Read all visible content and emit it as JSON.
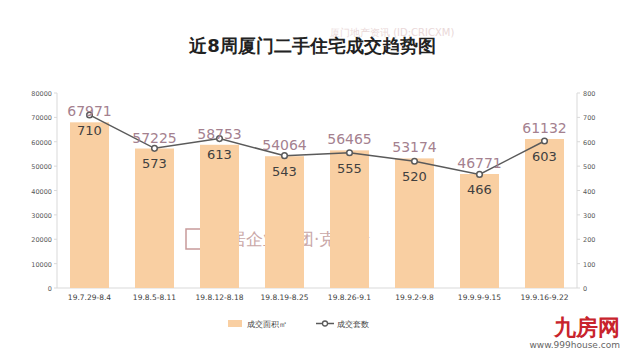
{
  "chart_data": {
    "type": "bar",
    "title": "近8周厦门二手住宅成交趋势图",
    "categories": [
      "19.7.29-8.4",
      "19.8.5-8.11",
      "19.8.12-8.18",
      "19.8.19-8.25",
      "19.8.26-9.1",
      "19.9.2-9.8",
      "19.9.9-9.15",
      "19.9.16-9.22"
    ],
    "series": [
      {
        "name": "成交面积㎡",
        "type": "bar",
        "color": "#f9cfa2",
        "values": [
          67971,
          57225,
          58753,
          54064,
          56465,
          53174,
          46771,
          61132
        ]
      },
      {
        "name": "成交套数",
        "type": "line",
        "axis": "y2",
        "color": "#5a5a5a",
        "marker": "circle",
        "line_style": "solid",
        "values": [
          710,
          573,
          613,
          543,
          555,
          520,
          466,
          603
        ]
      }
    ],
    "ylim": [
      0,
      80000
    ],
    "yticks": [
      0,
      10000,
      20000,
      30000,
      40000,
      50000,
      60000,
      70000,
      80000
    ],
    "y2lim": [
      0,
      800
    ],
    "y2ticks": [
      0,
      100,
      200,
      300,
      400,
      500,
      600,
      700,
      800
    ],
    "data_labels": true,
    "grid": false,
    "legend": "bottom",
    "annotations": [
      "厦门地产资讯 (ID:CRICXM)",
      "易居企业集团·克而瑞",
      "九房网",
      "www.999house.com"
    ]
  }
}
